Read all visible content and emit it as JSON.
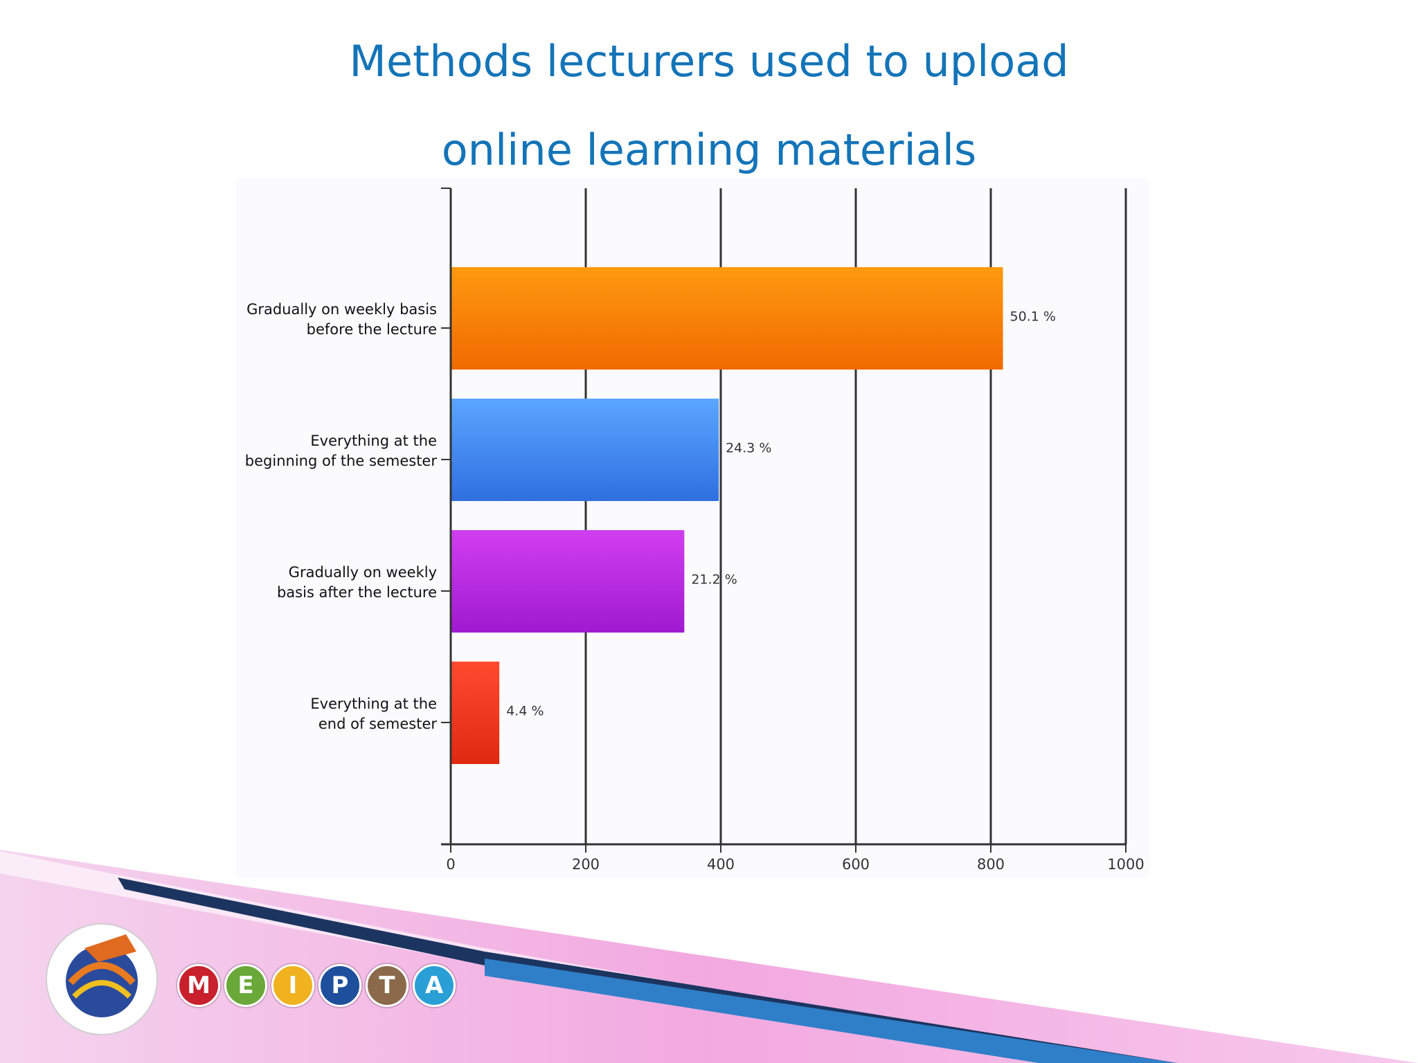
{
  "slide": {
    "title_line_1": "Methods lecturers used to upload",
    "title_line_2": "online learning materials"
  },
  "chart_data": {
    "type": "bar",
    "orientation": "horizontal",
    "categories": [
      [
        "Gradually on weekly basis",
        "before the lecture"
      ],
      [
        "Everything at the",
        "beginning of the semester"
      ],
      [
        "Gradually on weekly",
        "basis after the lecture"
      ],
      [
        "Everything at the",
        "end of semester"
      ]
    ],
    "values": [
      818,
      397,
      346,
      72
    ],
    "data_labels": [
      "50.1 %",
      "24.3 %",
      "21.2 %",
      "4.4 %"
    ],
    "colors": [
      [
        "#ff9a10",
        "#f06a00"
      ],
      [
        "#5aa6ff",
        "#2f6fe0"
      ],
      [
        "#d03ff0",
        "#a01ad0"
      ],
      [
        "#ff4a2e",
        "#e02a10"
      ]
    ],
    "xlim": [
      0,
      1000
    ],
    "xticks": [
      0,
      200,
      400,
      600,
      800,
      1000
    ],
    "xlabel": "",
    "ylabel": "",
    "grid": "vertical"
  },
  "logo": {
    "letters": [
      "M",
      "E",
      "I",
      "P",
      "T",
      "A"
    ],
    "colors": [
      "#c8202c",
      "#6aa83a",
      "#f0b21e",
      "#1e4f9c",
      "#8a6a4a",
      "#2a9fd6"
    ]
  }
}
